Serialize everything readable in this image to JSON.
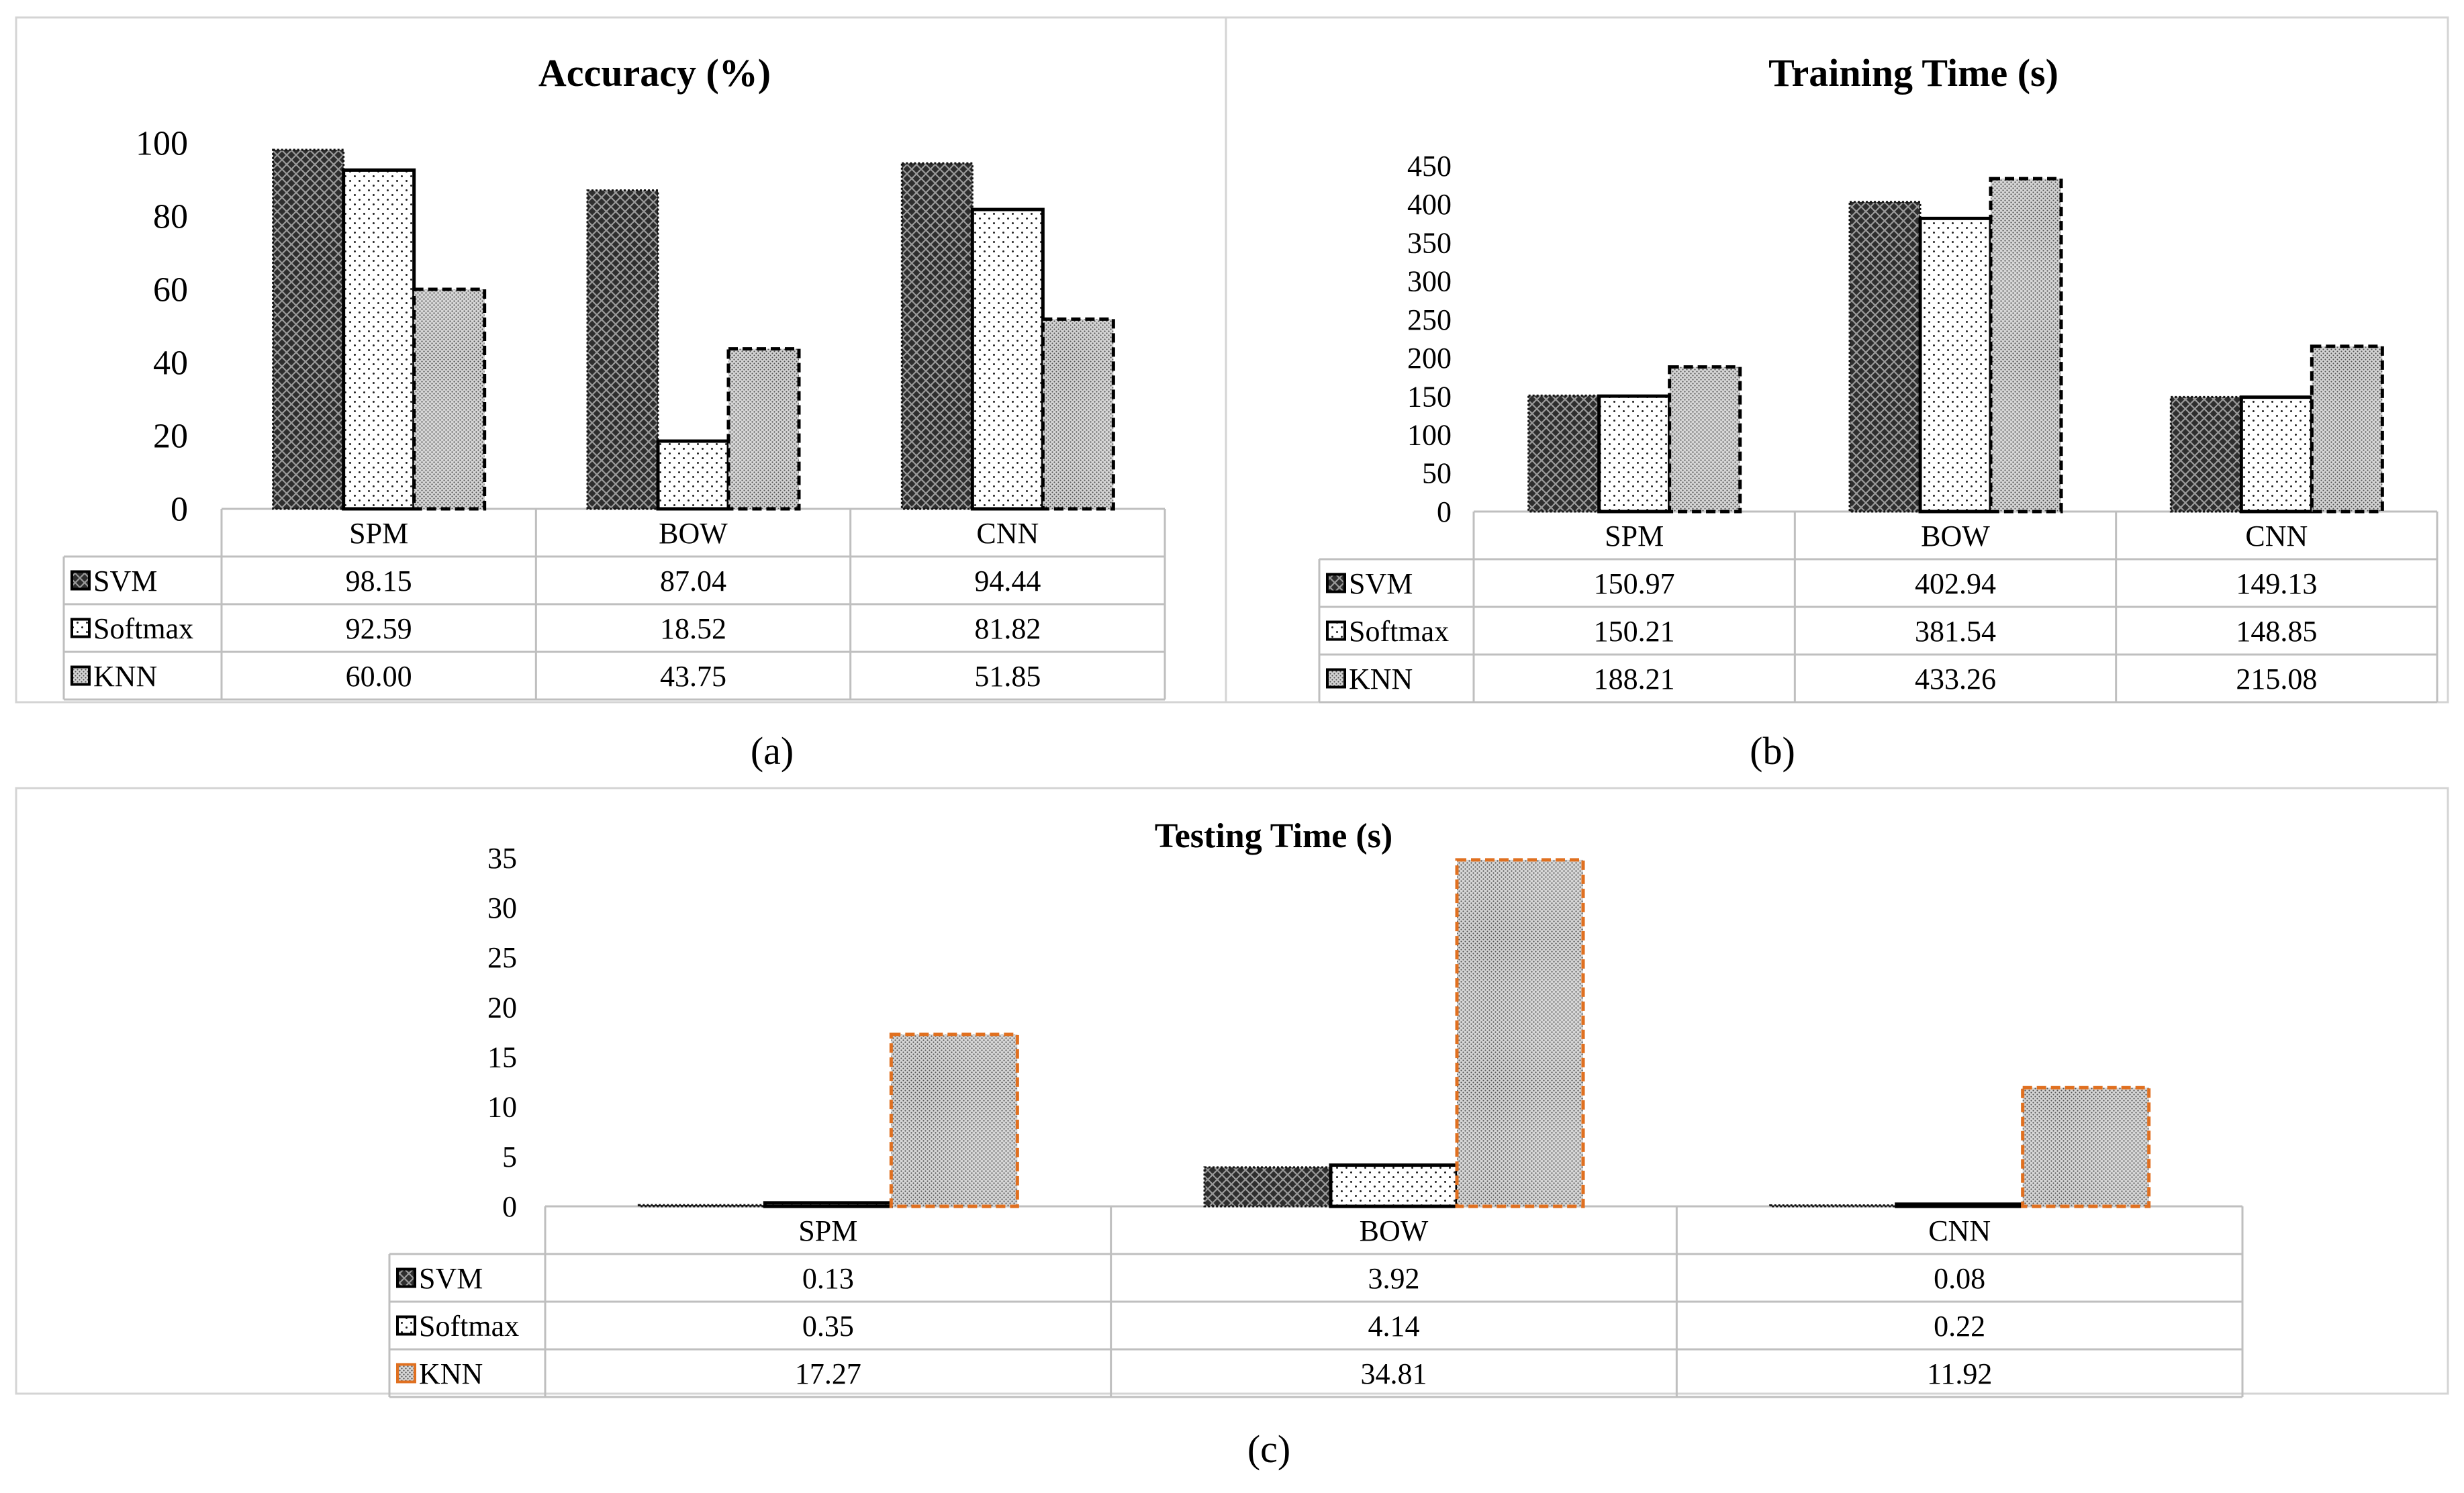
{
  "figure": {
    "panel_labels": [
      "(a)",
      "(b)",
      "(c)"
    ]
  },
  "colors": {
    "svm": "#3a3a3a",
    "softmax": "#ffffff",
    "knn": "#c8c8c8",
    "knn_testing_border": "#e07020",
    "grid": "#bfbfbf",
    "text": "#000000"
  },
  "chart_data": [
    {
      "type": "bar",
      "title": "Accuracy (%)",
      "categories": [
        "SPM",
        "BOW",
        "CNN"
      ],
      "series": [
        {
          "name": "SVM",
          "values": [
            98.15,
            87.04,
            94.44
          ],
          "labels": [
            "98.15",
            "87.04",
            "94.44"
          ]
        },
        {
          "name": "Softmax",
          "values": [
            92.59,
            18.52,
            81.82
          ],
          "labels": [
            "92.59",
            "18.52",
            "81.82"
          ]
        },
        {
          "name": "KNN",
          "values": [
            60.0,
            43.75,
            51.85
          ],
          "labels": [
            "60.00",
            "43.75",
            "51.85"
          ]
        }
      ],
      "ylim": [
        0,
        100
      ],
      "yticks": [
        0,
        20,
        40,
        60,
        80,
        100
      ],
      "xlabel": "",
      "ylabel": "",
      "data_table": true
    },
    {
      "type": "bar",
      "title": "Training Time (s)",
      "categories": [
        "SPM",
        "BOW",
        "CNN"
      ],
      "series": [
        {
          "name": "SVM",
          "values": [
            150.97,
            402.94,
            149.13
          ],
          "labels": [
            "150.97",
            "402.94",
            "149.13"
          ]
        },
        {
          "name": "Softmax",
          "values": [
            150.21,
            381.54,
            148.85
          ],
          "labels": [
            "150.21",
            "381.54",
            "148.85"
          ]
        },
        {
          "name": "KNN",
          "values": [
            188.21,
            433.26,
            215.08
          ],
          "labels": [
            "188.21",
            "433.26",
            "215.08"
          ]
        }
      ],
      "ylim": [
        0,
        450
      ],
      "yticks": [
        0,
        50,
        100,
        150,
        200,
        250,
        300,
        350,
        400,
        450
      ],
      "xlabel": "",
      "ylabel": "",
      "data_table": true
    },
    {
      "type": "bar",
      "title": "Testing Time (s)",
      "categories": [
        "SPM",
        "BOW",
        "CNN"
      ],
      "series": [
        {
          "name": "SVM",
          "values": [
            0.13,
            3.92,
            0.08
          ],
          "labels": [
            "0.13",
            "3.92",
            "0.08"
          ]
        },
        {
          "name": "Softmax",
          "values": [
            0.35,
            4.14,
            0.22
          ],
          "labels": [
            "0.35",
            "4.14",
            "0.22"
          ]
        },
        {
          "name": "KNN",
          "values": [
            17.27,
            34.81,
            11.92
          ],
          "labels": [
            "17.27",
            "34.81",
            "11.92"
          ]
        }
      ],
      "ylim": [
        0,
        35
      ],
      "yticks": [
        0,
        5,
        10,
        15,
        20,
        25,
        30,
        35
      ],
      "xlabel": "",
      "ylabel": "",
      "data_table": true
    }
  ]
}
